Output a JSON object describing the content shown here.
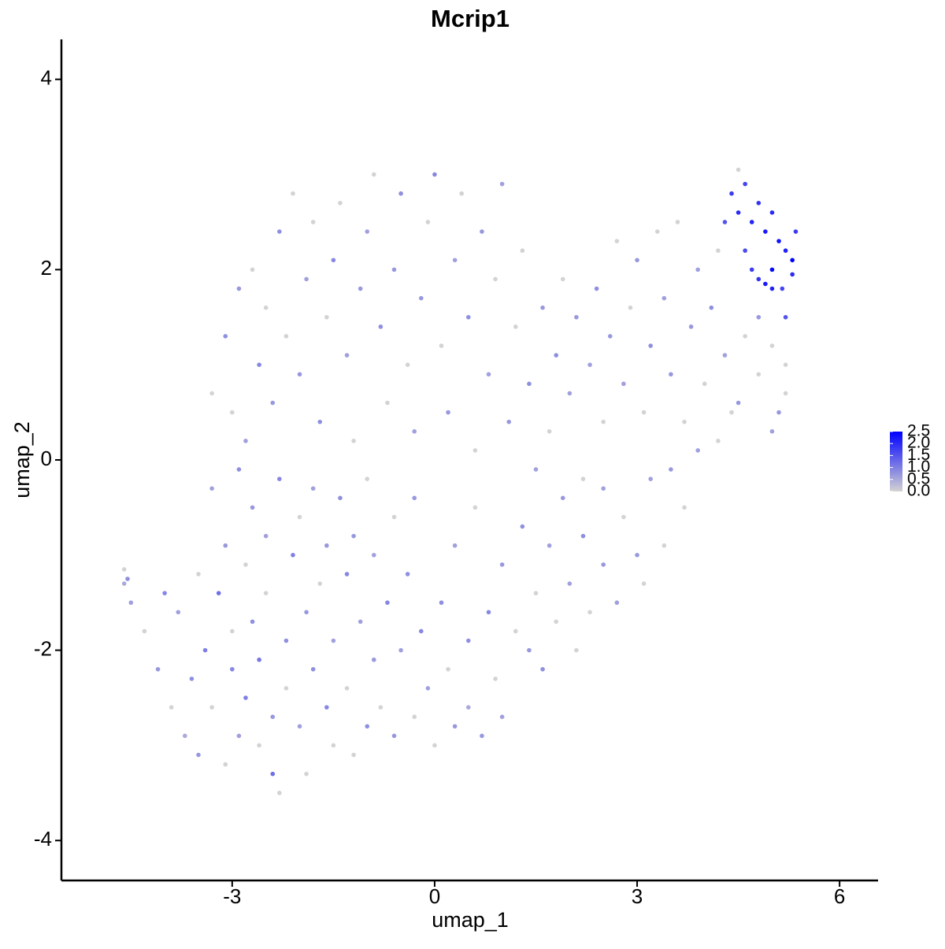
{
  "chart_data": {
    "type": "scatter",
    "title": "Mcrip1",
    "x_label": "umap_1",
    "y_label": "umap_2",
    "xlim": [
      -5.53,
      6.57
    ],
    "ylim": [
      -4.42,
      4.42
    ],
    "xticks": [
      -3,
      0,
      3,
      6
    ],
    "yticks": [
      -4,
      -2,
      0,
      2,
      4
    ],
    "color_scale": {
      "low": "#d3d3d3",
      "high": "#0000ff",
      "lim": [
        0,
        2.5
      ],
      "ticks": [
        {
          "value": 0,
          "label": "0.0"
        },
        {
          "value": 0.5,
          "label": "0.5"
        },
        {
          "value": 1,
          "label": "1.0"
        },
        {
          "value": 1.5,
          "label": "1.5"
        },
        {
          "value": 2,
          "label": "2.0"
        },
        {
          "value": 2.5,
          "label": "2.5"
        }
      ]
    },
    "points": [
      [
        -4.6,
        -1.3,
        0.5
      ],
      [
        -4.55,
        -1.25,
        0.8
      ],
      [
        -4.5,
        -1.5,
        0.6
      ],
      [
        -4.6,
        -1.15,
        0
      ],
      [
        -4.3,
        -1.8,
        0
      ],
      [
        -4.1,
        -2.2,
        0.7
      ],
      [
        -4.0,
        -1.4,
        0.9
      ],
      [
        -3.9,
        -2.6,
        0
      ],
      [
        -3.8,
        -1.6,
        0.6
      ],
      [
        -3.7,
        -2.9,
        0.5
      ],
      [
        -3.6,
        -2.3,
        0.8
      ],
      [
        -3.5,
        -1.2,
        0
      ],
      [
        -3.5,
        -3.1,
        0.7
      ],
      [
        -3.4,
        -2.0,
        1.0
      ],
      [
        -3.3,
        -0.3,
        0.6
      ],
      [
        -3.3,
        -2.6,
        0
      ],
      [
        -3.2,
        -1.4,
        1.2
      ],
      [
        -3.1,
        -3.2,
        0
      ],
      [
        -3.1,
        -0.9,
        0.7
      ],
      [
        -3.0,
        -2.2,
        0.9
      ],
      [
        -3.0,
        -1.8,
        0
      ],
      [
        -2.9,
        -0.1,
        0.8
      ],
      [
        -2.9,
        -2.9,
        0.6
      ],
      [
        -2.8,
        -1.1,
        0
      ],
      [
        -2.8,
        -2.5,
        1.0
      ],
      [
        -2.7,
        -0.5,
        0.7
      ],
      [
        -2.7,
        -1.7,
        0.8
      ],
      [
        -2.6,
        -3.0,
        0
      ],
      [
        -2.6,
        -2.1,
        1.1
      ],
      [
        -2.5,
        -0.8,
        0.6
      ],
      [
        -2.5,
        -1.4,
        0
      ],
      [
        -2.4,
        -3.3,
        1.2
      ],
      [
        -2.4,
        -2.7,
        0.7
      ],
      [
        -2.3,
        -3.5,
        0
      ],
      [
        -2.3,
        -0.2,
        0.9
      ],
      [
        -2.2,
        -1.9,
        0.8
      ],
      [
        -2.2,
        -2.4,
        0
      ],
      [
        -2.1,
        -1.0,
        1.0
      ],
      [
        -2.0,
        -2.8,
        0.6
      ],
      [
        -2.0,
        -0.6,
        0
      ],
      [
        -1.9,
        -1.6,
        0.7
      ],
      [
        -1.9,
        -3.3,
        0
      ],
      [
        -1.8,
        -2.2,
        0.8
      ],
      [
        -1.8,
        -0.3,
        0.6
      ],
      [
        -1.7,
        -1.3,
        0
      ],
      [
        -1.6,
        -2.6,
        0.9
      ],
      [
        -1.6,
        -0.9,
        0.7
      ],
      [
        -1.5,
        -3.0,
        0
      ],
      [
        -1.5,
        -1.9,
        0.6
      ],
      [
        -1.4,
        -0.4,
        0.8
      ],
      [
        -1.3,
        -2.4,
        0
      ],
      [
        -1.3,
        -1.2,
        0.9
      ],
      [
        -1.2,
        -3.1,
        0
      ],
      [
        -1.2,
        -0.8,
        0.7
      ],
      [
        -1.1,
        -1.7,
        0.6
      ],
      [
        -1.0,
        -2.8,
        0.8
      ],
      [
        -1.0,
        -0.2,
        0
      ],
      [
        -0.9,
        -2.1,
        0.7
      ],
      [
        -0.9,
        -1.0,
        0.6
      ],
      [
        -0.8,
        -2.6,
        0
      ],
      [
        -0.7,
        -1.5,
        0.9
      ],
      [
        -0.6,
        -2.9,
        0.7
      ],
      [
        -0.6,
        -0.6,
        0
      ],
      [
        -0.5,
        -2.0,
        0.6
      ],
      [
        -0.4,
        -1.2,
        0.8
      ],
      [
        -0.3,
        -2.7,
        0
      ],
      [
        -0.3,
        -0.4,
        0.7
      ],
      [
        -0.2,
        -1.8,
        0.9
      ],
      [
        -0.1,
        -2.4,
        0.6
      ],
      [
        0,
        -3.0,
        0
      ],
      [
        0.1,
        -1.5,
        0.8
      ],
      [
        0.2,
        -2.2,
        0
      ],
      [
        0.3,
        -2.8,
        0.7
      ],
      [
        0.3,
        -0.9,
        0.6
      ],
      [
        0.5,
        -1.9,
        0.8
      ],
      [
        0.5,
        -2.6,
        0.5
      ],
      [
        0.6,
        -0.5,
        0
      ],
      [
        0.7,
        -2.9,
        0.7
      ],
      [
        0.8,
        -1.6,
        0.9
      ],
      [
        0.9,
        -2.3,
        0
      ],
      [
        1.0,
        -1.1,
        0.7
      ],
      [
        1.0,
        -2.7,
        0.6
      ],
      [
        1.2,
        -1.8,
        0
      ],
      [
        1.3,
        -0.7,
        0.8
      ],
      [
        1.4,
        -2.0,
        0.7
      ],
      [
        1.5,
        -1.4,
        0
      ],
      [
        1.6,
        -2.2,
        0.8
      ],
      [
        1.7,
        -0.9,
        0.6
      ],
      [
        1.8,
        -1.7,
        0
      ],
      [
        1.9,
        -0.4,
        0.7
      ],
      [
        2.0,
        -1.3,
        0.6
      ],
      [
        2.1,
        -2.0,
        0
      ],
      [
        2.2,
        -0.8,
        0.8
      ],
      [
        2.3,
        -1.6,
        0
      ],
      [
        2.5,
        -0.3,
        0.6
      ],
      [
        2.5,
        -1.1,
        0.7
      ],
      [
        2.7,
        -1.5,
        0.6
      ],
      [
        2.8,
        -0.6,
        0
      ],
      [
        3.0,
        -1.0,
        0.7
      ],
      [
        3.1,
        -1.3,
        0
      ],
      [
        3.2,
        -0.2,
        0.6
      ],
      [
        3.4,
        -0.9,
        0
      ],
      [
        3.5,
        -0.1,
        0.7
      ],
      [
        3.7,
        -0.5,
        0
      ],
      [
        3.9,
        0.1,
        0.6
      ],
      [
        4.2,
        0.2,
        0
      ],
      [
        4.5,
        0.6,
        0.7
      ],
      [
        4.8,
        0.9,
        0
      ],
      [
        5.0,
        0.3,
        0.6
      ],
      [
        5.2,
        1.0,
        0
      ],
      [
        5.1,
        0.5,
        0.7
      ],
      [
        -3.3,
        0.7,
        0
      ],
      [
        -3.1,
        1.3,
        0.8
      ],
      [
        -3.0,
        0.5,
        0
      ],
      [
        -2.9,
        1.8,
        0.7
      ],
      [
        -2.8,
        0.2,
        0.6
      ],
      [
        -2.7,
        2.0,
        0
      ],
      [
        -2.6,
        1.0,
        0.9
      ],
      [
        -2.5,
        1.6,
        0
      ],
      [
        -2.4,
        0.6,
        0.7
      ],
      [
        -2.3,
        2.4,
        0.8
      ],
      [
        -2.2,
        1.3,
        0
      ],
      [
        -2.1,
        2.8,
        0
      ],
      [
        -2.0,
        0.9,
        0.7
      ],
      [
        -1.9,
        1.9,
        0.6
      ],
      [
        -1.8,
        2.5,
        0
      ],
      [
        -1.7,
        0.4,
        0.8
      ],
      [
        -1.6,
        1.5,
        0
      ],
      [
        -1.5,
        2.1,
        0.9
      ],
      [
        -1.4,
        2.7,
        0
      ],
      [
        -1.3,
        1.1,
        0.6
      ],
      [
        -1.2,
        0.2,
        0
      ],
      [
        -1.1,
        1.8,
        0.7
      ],
      [
        -1.0,
        2.4,
        0.6
      ],
      [
        -0.9,
        3.0,
        0
      ],
      [
        -0.8,
        1.4,
        0.8
      ],
      [
        -0.7,
        0.6,
        0
      ],
      [
        -0.6,
        2.0,
        0.7
      ],
      [
        -0.5,
        2.8,
        0.8
      ],
      [
        -0.4,
        1.0,
        0
      ],
      [
        -0.3,
        0.3,
        0.6
      ],
      [
        -0.2,
        1.7,
        0.7
      ],
      [
        -0.1,
        2.5,
        0
      ],
      [
        0,
        3.0,
        0.9
      ],
      [
        0.1,
        1.2,
        0
      ],
      [
        0.2,
        0.5,
        0.7
      ],
      [
        0.3,
        2.1,
        0.6
      ],
      [
        0.4,
        2.8,
        0
      ],
      [
        0.5,
        1.5,
        0.8
      ],
      [
        0.6,
        0.1,
        0
      ],
      [
        0.7,
        2.4,
        0.7
      ],
      [
        0.8,
        0.9,
        0.6
      ],
      [
        0.9,
        1.9,
        0
      ],
      [
        1.0,
        2.9,
        0.6
      ],
      [
        1.1,
        0.4,
        0.7
      ],
      [
        1.2,
        1.4,
        0
      ],
      [
        1.3,
        2.2,
        0
      ],
      [
        1.4,
        0.8,
        0.8
      ],
      [
        1.5,
        -0.1,
        0.6
      ],
      [
        1.6,
        1.6,
        0.7
      ],
      [
        1.7,
        0.3,
        0
      ],
      [
        1.8,
        1.1,
        0.8
      ],
      [
        1.9,
        1.9,
        0
      ],
      [
        2.0,
        0.7,
        0.6
      ],
      [
        2.1,
        1.5,
        0.7
      ],
      [
        2.2,
        -0.2,
        0
      ],
      [
        2.3,
        1.0,
        0.6
      ],
      [
        2.4,
        1.8,
        0.8
      ],
      [
        2.5,
        0.4,
        0
      ],
      [
        2.6,
        1.3,
        0.7
      ],
      [
        2.7,
        2.3,
        0
      ],
      [
        2.8,
        0.8,
        0.6
      ],
      [
        2.9,
        1.6,
        0
      ],
      [
        3.0,
        2.1,
        0.7
      ],
      [
        3.1,
        0.5,
        0
      ],
      [
        3.2,
        1.2,
        0.8
      ],
      [
        3.3,
        2.4,
        0
      ],
      [
        3.4,
        1.7,
        0.6
      ],
      [
        3.5,
        0.9,
        0.7
      ],
      [
        3.6,
        2.5,
        0
      ],
      [
        3.7,
        0.4,
        0
      ],
      [
        3.8,
        1.4,
        0.7
      ],
      [
        3.9,
        2.0,
        0.6
      ],
      [
        4.0,
        0.8,
        0
      ],
      [
        4.1,
        1.6,
        0.8
      ],
      [
        4.2,
        2.2,
        0
      ],
      [
        4.3,
        1.1,
        0.6
      ],
      [
        4.4,
        0.5,
        0
      ],
      [
        4.6,
        1.3,
        0
      ],
      [
        4.8,
        1.5,
        0.7
      ],
      [
        5.0,
        1.2,
        0
      ],
      [
        5.2,
        0.7,
        0
      ],
      [
        4.4,
        2.8,
        1.8
      ],
      [
        4.5,
        2.6,
        2.0
      ],
      [
        4.5,
        3.05,
        0
      ],
      [
        4.6,
        2.9,
        1.7
      ],
      [
        4.7,
        2.5,
        2.1
      ],
      [
        4.8,
        2.7,
        1.9
      ],
      [
        4.9,
        2.4,
        2.2
      ],
      [
        5.0,
        2.6,
        2.0
      ],
      [
        5.1,
        2.3,
        2.3
      ],
      [
        5.2,
        2.2,
        2.1
      ],
      [
        5.3,
        2.1,
        2.5
      ],
      [
        5.35,
        2.4,
        1.8
      ],
      [
        5.3,
        1.95,
        2.0
      ],
      [
        4.9,
        1.85,
        2.2
      ],
      [
        5.0,
        2.0,
        2.4
      ],
      [
        4.8,
        1.9,
        1.9
      ],
      [
        5.15,
        1.8,
        1.7
      ],
      [
        4.6,
        2.2,
        1.6
      ],
      [
        4.3,
        2.5,
        1.5
      ],
      [
        5.2,
        1.5,
        1.5
      ],
      [
        4.7,
        2.0,
        1.8
      ],
      [
        5.0,
        1.8,
        2.1
      ]
    ]
  }
}
